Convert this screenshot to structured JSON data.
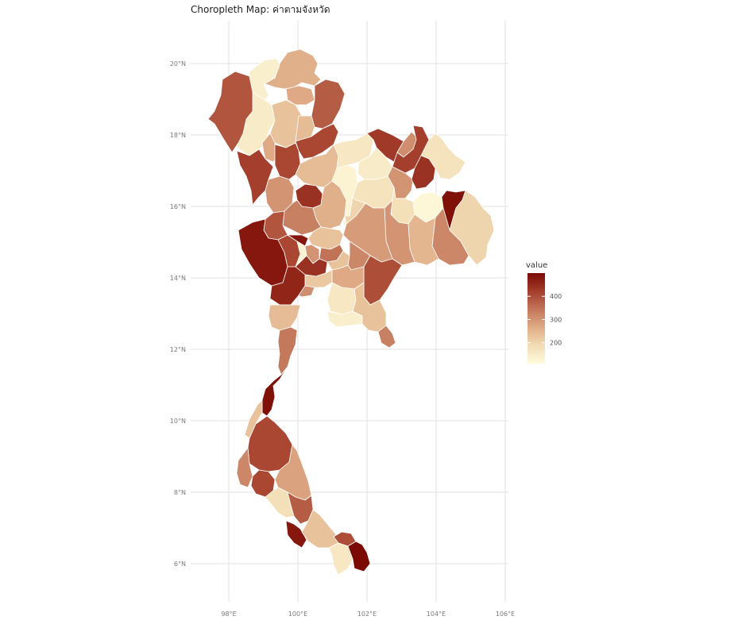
{
  "title": "Choropleth Map: ค่าตามจังหวัด",
  "axes": {
    "x_ticks": [
      "98°E",
      "100°E",
      "102°E",
      "104°E",
      "106°E"
    ],
    "y_ticks": [
      "20°N",
      "18°N",
      "16°N",
      "14°N",
      "12°N",
      "10°N",
      "8°N",
      "6°N"
    ],
    "x_range": [
      97.0,
      106.2
    ],
    "y_range": [
      5.2,
      21.2
    ],
    "grid": true
  },
  "legend": {
    "title": "value",
    "ticks": [
      "400",
      "300",
      "200"
    ],
    "tick_values": [
      400,
      300,
      200
    ],
    "range": [
      110,
      500
    ],
    "placement": "right",
    "colors": [
      "#fffbdc",
      "#f2dcb4",
      "#dfac86",
      "#c3765b",
      "#a43e2c",
      "#7a0a03"
    ]
  },
  "chart_data": {
    "type": "choropleth",
    "title": "Choropleth Map: ค่าตามจังหวัด",
    "legend_title": "value",
    "regions": [
      {
        "id": "chiang-rai",
        "value": 260
      },
      {
        "id": "chiang-mai-north",
        "value": 140
      },
      {
        "id": "mae-hong-son",
        "value": 390
      },
      {
        "id": "chiang-mai",
        "value": 150
      },
      {
        "id": "lampang",
        "value": 230
      },
      {
        "id": "phayao",
        "value": 270
      },
      {
        "id": "nan",
        "value": 380
      },
      {
        "id": "phrae",
        "value": 240
      },
      {
        "id": "lamphun",
        "value": 270
      },
      {
        "id": "uttaradit",
        "value": 410
      },
      {
        "id": "tak",
        "value": 420
      },
      {
        "id": "sukhothai",
        "value": 410
      },
      {
        "id": "phitsanulok",
        "value": 240
      },
      {
        "id": "kamphaeng-phet",
        "value": 300
      },
      {
        "id": "phichit",
        "value": 440
      },
      {
        "id": "phetchabun",
        "value": 260
      },
      {
        "id": "loei",
        "value": 160
      },
      {
        "id": "nong-bua-lamphu",
        "value": 130
      },
      {
        "id": "udon-thani",
        "value": 150
      },
      {
        "id": "nong-khai",
        "value": 430
      },
      {
        "id": "bueng-kan",
        "value": 310
      },
      {
        "id": "sakon-nakhon",
        "value": 420
      },
      {
        "id": "nakhon-phanom",
        "value": 170
      },
      {
        "id": "khon-kaen",
        "value": 170
      },
      {
        "id": "kalasin",
        "value": 300
      },
      {
        "id": "mukdahan",
        "value": 440
      },
      {
        "id": "roi-et",
        "value": 180
      },
      {
        "id": "yasothon",
        "value": 120
      },
      {
        "id": "amnat-charoen",
        "value": 490
      },
      {
        "id": "ubon-ratchathani",
        "value": 200
      },
      {
        "id": "si-sa-ket",
        "value": 320
      },
      {
        "id": "surin",
        "value": 250
      },
      {
        "id": "buri-ram",
        "value": 300
      },
      {
        "id": "nakhon-ratchasima",
        "value": 290
      },
      {
        "id": "chaiyaphum",
        "value": 200
      },
      {
        "id": "nakhon-sawan",
        "value": 330
      },
      {
        "id": "uthai-thani",
        "value": 390
      },
      {
        "id": "kanchanaburi",
        "value": 480
      },
      {
        "id": "suphan-buri",
        "value": 410
      },
      {
        "id": "chai-nat",
        "value": 480
      },
      {
        "id": "lop-buri",
        "value": 230
      },
      {
        "id": "sing-buri",
        "value": 130
      },
      {
        "id": "saraburi",
        "value": 350
      },
      {
        "id": "ang-thong",
        "value": 300
      },
      {
        "id": "ayutthaya",
        "value": 440
      },
      {
        "id": "nakhon-nayok",
        "value": 230
      },
      {
        "id": "prachin-buri",
        "value": 320
      },
      {
        "id": "sa-kaeo",
        "value": 400
      },
      {
        "id": "bangkok",
        "value": 220
      },
      {
        "id": "ratchaburi",
        "value": 460
      },
      {
        "id": "samut-songkhram",
        "value": 310
      },
      {
        "id": "chachoengsao",
        "value": 270
      },
      {
        "id": "chon-buri",
        "value": 160
      },
      {
        "id": "rayong",
        "value": 140
      },
      {
        "id": "chanthaburi",
        "value": 230
      },
      {
        "id": "trat",
        "value": 330
      },
      {
        "id": "phetchaburi",
        "value": 240
      },
      {
        "id": "prachuap-khiri-khan",
        "value": 340
      },
      {
        "id": "chumphon",
        "value": 490
      },
      {
        "id": "ranong",
        "value": 230
      },
      {
        "id": "surat-thani",
        "value": 410
      },
      {
        "id": "phang-nga",
        "value": 320
      },
      {
        "id": "krabi",
        "value": 410
      },
      {
        "id": "nakhon-si-thammarat",
        "value": 280
      },
      {
        "id": "trang",
        "value": 180
      },
      {
        "id": "phatthalung",
        "value": 380
      },
      {
        "id": "satun",
        "value": 480
      },
      {
        "id": "songkhla",
        "value": 230
      },
      {
        "id": "pattani",
        "value": 400
      },
      {
        "id": "yala",
        "value": 160
      },
      {
        "id": "narathiwat",
        "value": 500
      }
    ]
  }
}
